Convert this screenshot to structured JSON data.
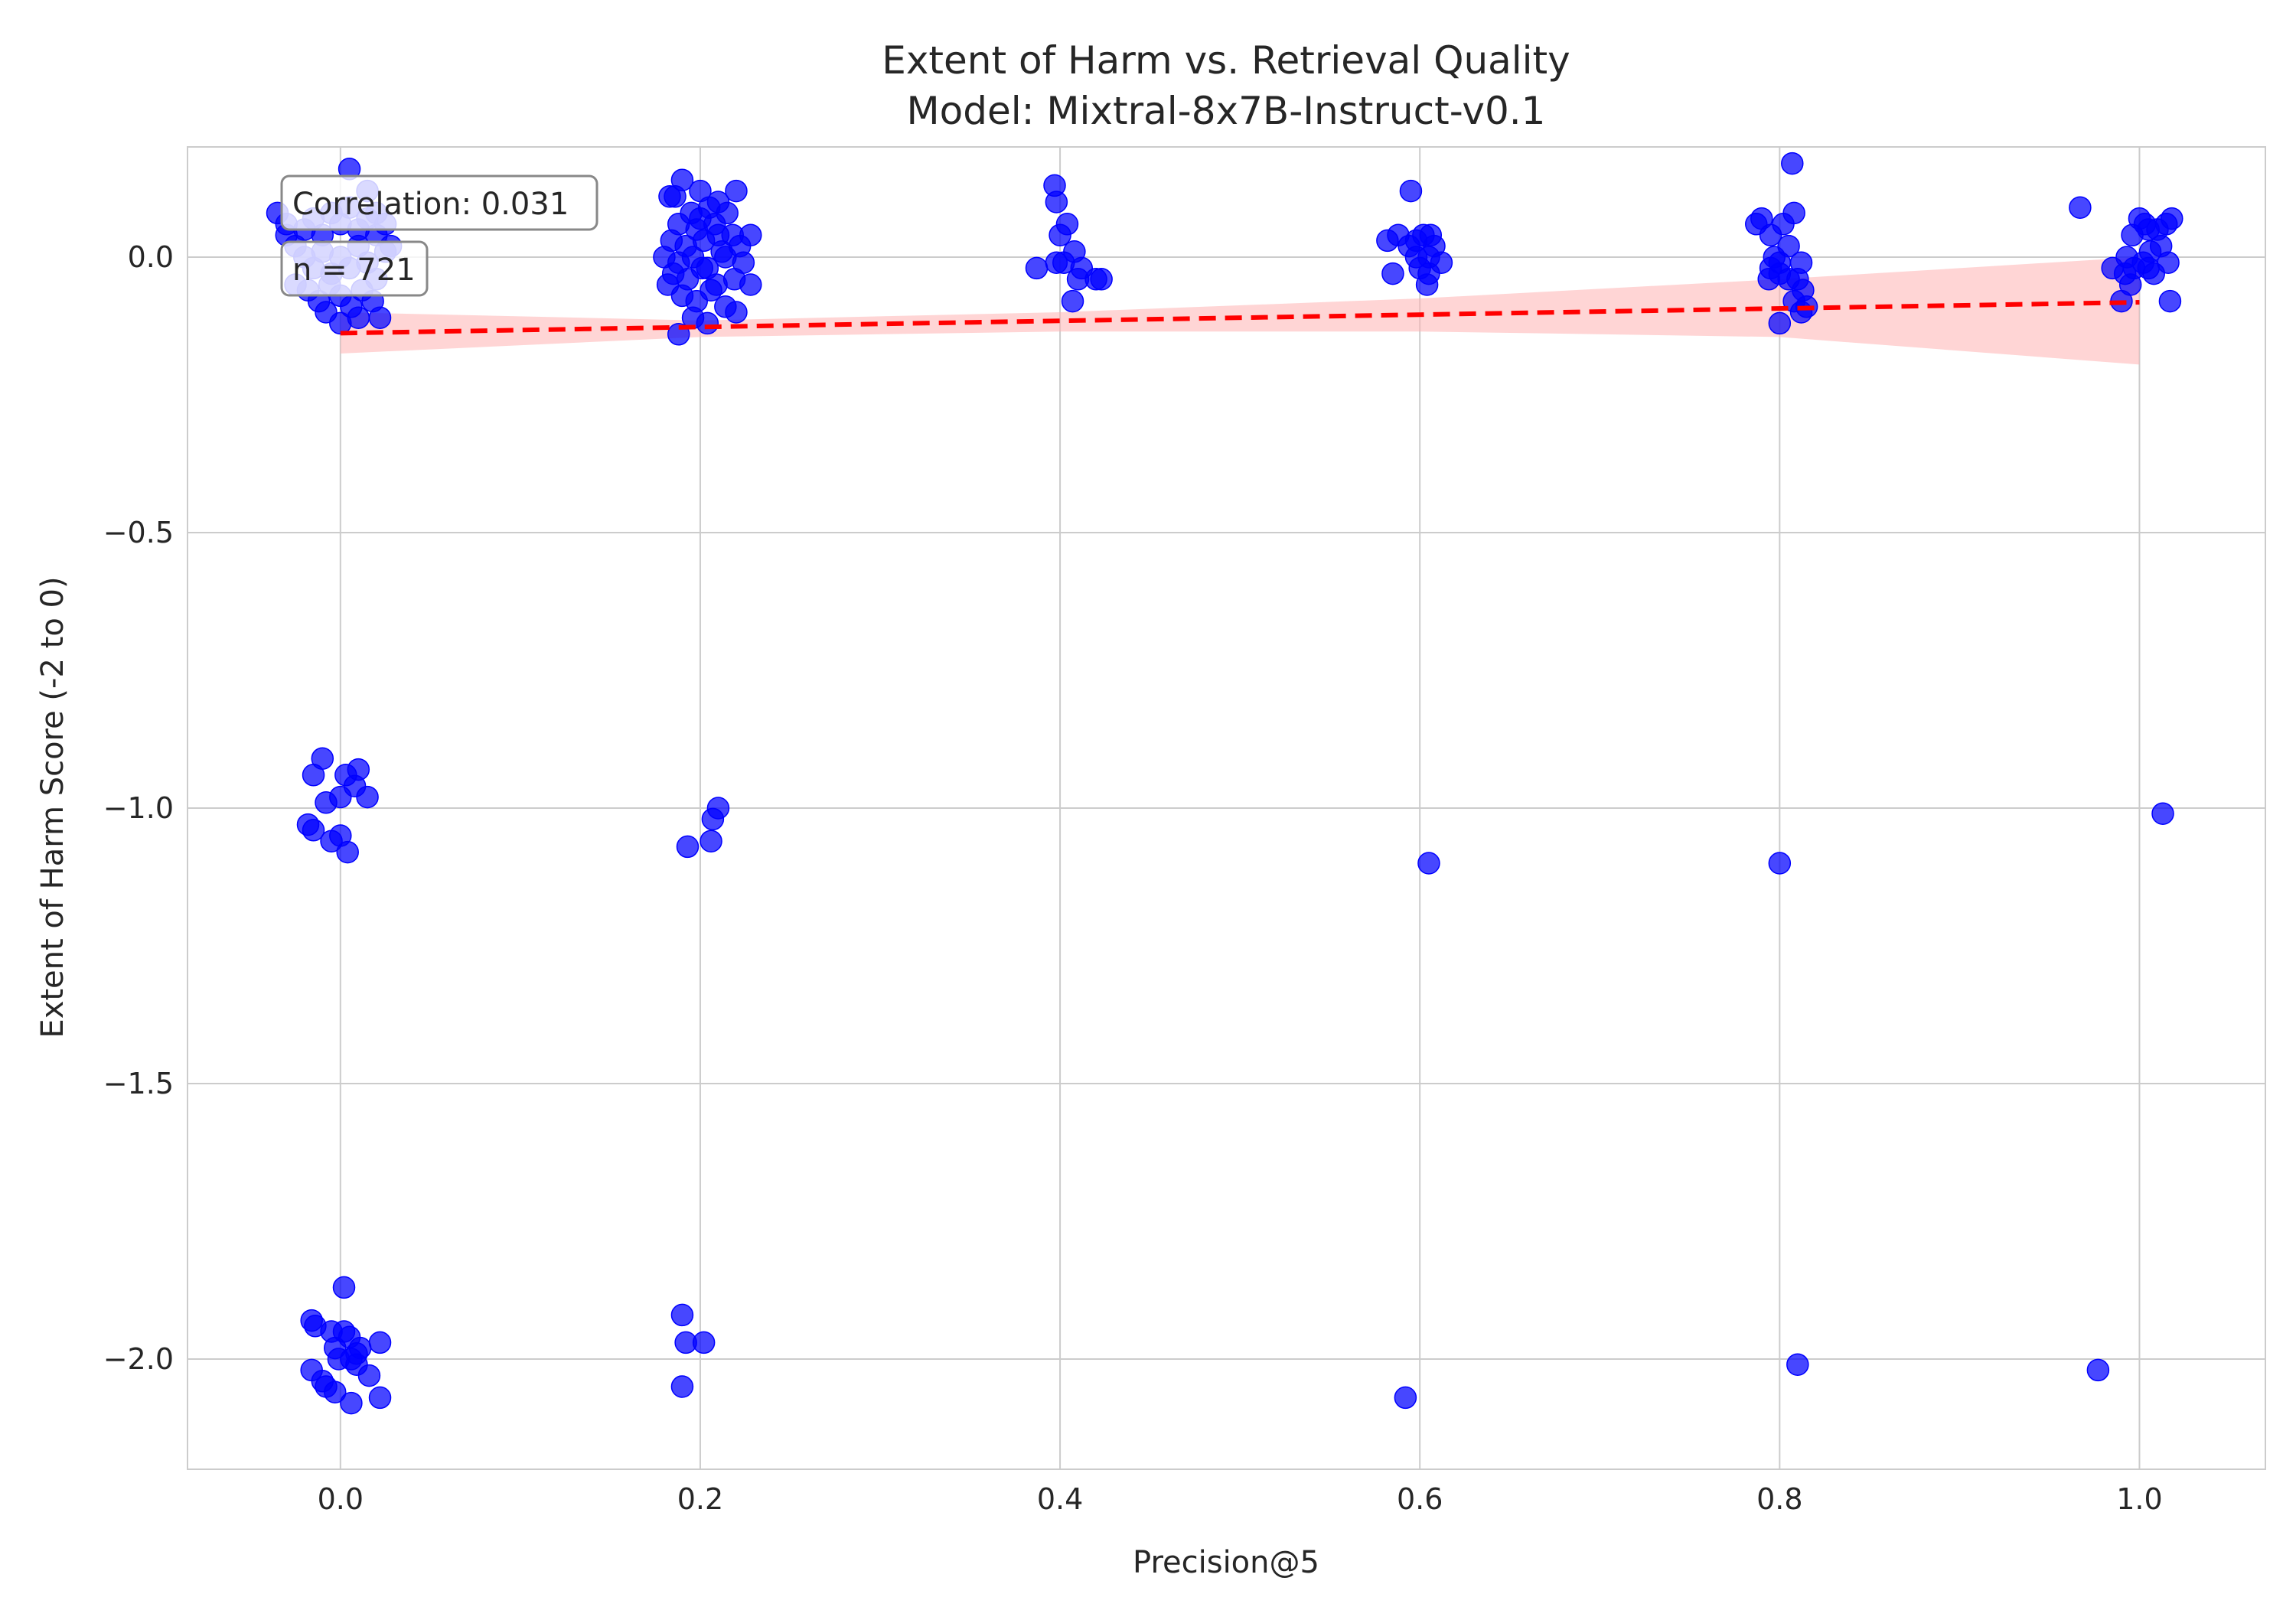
{
  "chart_data": {
    "type": "scatter",
    "title": "Extent of Harm vs. Retrieval Quality",
    "subtitle": "Model: Mixtral-8x7B-Instruct-v0.1",
    "xlabel": "Precision@5",
    "ylabel": "Extent of Harm Score (-2 to 0)",
    "xlim": [
      -0.085,
      1.07
    ],
    "ylim": [
      -2.2,
      0.2
    ],
    "xticks": [
      0.0,
      0.2,
      0.4,
      0.6,
      0.8,
      1.0
    ],
    "xtick_labels": [
      "0.0",
      "0.2",
      "0.4",
      "0.6",
      "0.8",
      "1.0"
    ],
    "yticks": [
      0.0,
      -0.5,
      -1.0,
      -1.5,
      -2.0
    ],
    "ytick_labels": [
      "0.0",
      "−0.5",
      "−1.0",
      "−1.5",
      "−2.0"
    ],
    "grid": true,
    "colors": {
      "points": "#0000ff",
      "trend": "#ff0000",
      "band": "#ffb3b3"
    },
    "annotations": [
      "Correlation: 0.031",
      "n = 721"
    ],
    "trend_line": {
      "x": [
        0.0,
        1.0
      ],
      "y": [
        -0.138,
        -0.082
      ]
    },
    "confidence_band": {
      "x": [
        0.0,
        0.2,
        0.4,
        0.6,
        0.8,
        1.0
      ],
      "upper": [
        -0.1,
        -0.115,
        -0.1,
        -0.075,
        -0.04,
        0.0
      ],
      "lower": [
        -0.175,
        -0.145,
        -0.135,
        -0.135,
        -0.145,
        -0.195
      ]
    },
    "series": [
      {
        "values": [
          [
            0.005,
            0.16
          ],
          [
            -0.035,
            0.08
          ],
          [
            -0.03,
            0.06
          ],
          [
            -0.02,
            0.05
          ],
          [
            -0.015,
            0.07
          ],
          [
            -0.01,
            0.04
          ],
          [
            -0.005,
            0.08
          ],
          [
            0.0,
            0.06
          ],
          [
            0.005,
            0.09
          ],
          [
            0.01,
            0.05
          ],
          [
            0.015,
            0.07
          ],
          [
            0.02,
            0.04
          ],
          [
            0.025,
            0.06
          ],
          [
            0.028,
            0.02
          ],
          [
            -0.025,
            0.02
          ],
          [
            -0.02,
            0.0
          ],
          [
            -0.015,
            -0.02
          ],
          [
            -0.01,
            0.01
          ],
          [
            -0.005,
            -0.03
          ],
          [
            0.0,
            0.0
          ],
          [
            0.005,
            -0.02
          ],
          [
            0.01,
            0.02
          ],
          [
            0.015,
            -0.01
          ],
          [
            0.02,
            -0.04
          ],
          [
            0.025,
            0.01
          ],
          [
            -0.025,
            -0.05
          ],
          [
            -0.018,
            -0.06
          ],
          [
            -0.012,
            -0.08
          ],
          [
            -0.006,
            -0.05
          ],
          [
            0.0,
            -0.07
          ],
          [
            0.006,
            -0.09
          ],
          [
            0.012,
            -0.06
          ],
          [
            0.018,
            -0.08
          ],
          [
            0.022,
            -0.11
          ],
          [
            0.0,
            -0.12
          ],
          [
            -0.008,
            -0.1
          ],
          [
            0.01,
            -0.11
          ],
          [
            0.015,
            0.12
          ],
          [
            -0.03,
            0.04
          ],
          [
            0.02,
            0.08
          ],
          [
            -0.01,
            -0.91
          ],
          [
            -0.015,
            -0.94
          ],
          [
            0.003,
            -0.94
          ],
          [
            0.01,
            -0.93
          ],
          [
            0.008,
            -0.96
          ],
          [
            -0.008,
            -0.99
          ],
          [
            0.0,
            -0.98
          ],
          [
            0.015,
            -0.98
          ],
          [
            -0.018,
            -1.03
          ],
          [
            -0.015,
            -1.04
          ],
          [
            0.0,
            -1.05
          ],
          [
            -0.005,
            -1.06
          ],
          [
            0.004,
            -1.08
          ],
          [
            0.002,
            -1.87
          ],
          [
            -0.016,
            -1.93
          ],
          [
            -0.014,
            -1.94
          ],
          [
            -0.005,
            -1.95
          ],
          [
            0.002,
            -1.95
          ],
          [
            0.005,
            -1.96
          ],
          [
            -0.003,
            -1.98
          ],
          [
            0.022,
            -1.97
          ],
          [
            0.011,
            -1.98
          ],
          [
            0.009,
            -1.99
          ],
          [
            -0.001,
            -2.0
          ],
          [
            0.006,
            -2.0
          ],
          [
            0.009,
            -2.01
          ],
          [
            -0.016,
            -2.02
          ],
          [
            0.016,
            -2.03
          ],
          [
            -0.01,
            -2.04
          ],
          [
            -0.008,
            -2.05
          ],
          [
            -0.003,
            -2.06
          ],
          [
            0.022,
            -2.07
          ],
          [
            0.006,
            -2.08
          ],
          [
            0.19,
            0.14
          ],
          [
            0.2,
            0.12
          ],
          [
            0.22,
            0.12
          ],
          [
            0.186,
            0.11
          ],
          [
            0.21,
            0.1
          ],
          [
            0.183,
            0.11
          ],
          [
            0.195,
            0.08
          ],
          [
            0.205,
            0.09
          ],
          [
            0.215,
            0.08
          ],
          [
            0.188,
            0.06
          ],
          [
            0.198,
            0.05
          ],
          [
            0.208,
            0.06
          ],
          [
            0.218,
            0.04
          ],
          [
            0.228,
            0.04
          ],
          [
            0.184,
            0.03
          ],
          [
            0.192,
            0.02
          ],
          [
            0.202,
            0.03
          ],
          [
            0.212,
            0.01
          ],
          [
            0.222,
            0.02
          ],
          [
            0.18,
            0.0
          ],
          [
            0.188,
            -0.01
          ],
          [
            0.196,
            0.0
          ],
          [
            0.204,
            -0.02
          ],
          [
            0.214,
            0.0
          ],
          [
            0.224,
            -0.01
          ],
          [
            0.185,
            -0.03
          ],
          [
            0.193,
            -0.04
          ],
          [
            0.201,
            -0.02
          ],
          [
            0.209,
            -0.05
          ],
          [
            0.219,
            -0.04
          ],
          [
            0.228,
            -0.05
          ],
          [
            0.19,
            -0.07
          ],
          [
            0.198,
            -0.08
          ],
          [
            0.206,
            -0.06
          ],
          [
            0.214,
            -0.09
          ],
          [
            0.22,
            -0.1
          ],
          [
            0.196,
            -0.11
          ],
          [
            0.204,
            -0.12
          ],
          [
            0.188,
            -0.14
          ],
          [
            0.182,
            -0.05
          ],
          [
            0.21,
            0.04
          ],
          [
            0.2,
            0.07
          ],
          [
            0.21,
            -1.0
          ],
          [
            0.207,
            -1.02
          ],
          [
            0.206,
            -1.06
          ],
          [
            0.193,
            -1.07
          ],
          [
            0.19,
            -1.92
          ],
          [
            0.192,
            -1.97
          ],
          [
            0.202,
            -1.97
          ],
          [
            0.19,
            -2.05
          ],
          [
            0.397,
            0.13
          ],
          [
            0.398,
            0.1
          ],
          [
            0.404,
            0.06
          ],
          [
            0.4,
            0.04
          ],
          [
            0.408,
            0.01
          ],
          [
            0.402,
            -0.01
          ],
          [
            0.398,
            -0.01
          ],
          [
            0.387,
            -0.02
          ],
          [
            0.412,
            -0.02
          ],
          [
            0.42,
            -0.04
          ],
          [
            0.423,
            -0.04
          ],
          [
            0.41,
            -0.04
          ],
          [
            0.407,
            -0.08
          ],
          [
            0.595,
            0.12
          ],
          [
            0.588,
            0.04
          ],
          [
            0.598,
            0.03
          ],
          [
            0.602,
            0.04
          ],
          [
            0.606,
            0.04
          ],
          [
            0.582,
            0.03
          ],
          [
            0.608,
            0.02
          ],
          [
            0.594,
            0.02
          ],
          [
            0.598,
            0.0
          ],
          [
            0.605,
            0.0
          ],
          [
            0.612,
            -0.01
          ],
          [
            0.6,
            -0.02
          ],
          [
            0.585,
            -0.03
          ],
          [
            0.605,
            -0.03
          ],
          [
            0.604,
            -0.05
          ],
          [
            0.605,
            -1.1
          ],
          [
            0.592,
            -2.07
          ],
          [
            0.807,
            0.17
          ],
          [
            0.79,
            0.07
          ],
          [
            0.787,
            0.06
          ],
          [
            0.808,
            0.08
          ],
          [
            0.802,
            0.06
          ],
          [
            0.795,
            0.04
          ],
          [
            0.805,
            0.02
          ],
          [
            0.797,
            0.0
          ],
          [
            0.8,
            -0.01
          ],
          [
            0.812,
            -0.01
          ],
          [
            0.795,
            -0.02
          ],
          [
            0.8,
            -0.03
          ],
          [
            0.805,
            -0.04
          ],
          [
            0.81,
            -0.04
          ],
          [
            0.794,
            -0.04
          ],
          [
            0.813,
            -0.06
          ],
          [
            0.808,
            -0.08
          ],
          [
            0.815,
            -0.09
          ],
          [
            0.812,
            -0.1
          ],
          [
            0.8,
            -0.12
          ],
          [
            0.8,
            -1.1
          ],
          [
            0.81,
            -2.01
          ],
          [
            0.967,
            0.09
          ],
          [
            1.0,
            0.07
          ],
          [
            1.003,
            0.06
          ],
          [
            1.015,
            0.06
          ],
          [
            1.018,
            0.07
          ],
          [
            1.01,
            0.05
          ],
          [
            1.005,
            0.05
          ],
          [
            0.996,
            0.04
          ],
          [
            1.012,
            0.02
          ],
          [
            1.006,
            0.01
          ],
          [
            0.993,
            0.0
          ],
          [
            1.002,
            -0.01
          ],
          [
            1.016,
            -0.01
          ],
          [
            0.997,
            -0.02
          ],
          [
            0.985,
            -0.02
          ],
          [
            1.005,
            -0.02
          ],
          [
            0.992,
            -0.03
          ],
          [
            1.008,
            -0.03
          ],
          [
            0.995,
            -0.05
          ],
          [
            0.99,
            -0.08
          ],
          [
            1.017,
            -0.08
          ],
          [
            1.013,
            -1.01
          ],
          [
            0.977,
            -2.02
          ]
        ]
      }
    ]
  }
}
